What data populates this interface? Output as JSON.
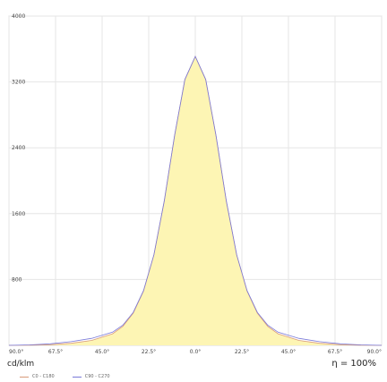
{
  "chart_data": {
    "type": "line",
    "title": "",
    "unit_label": "cd/klm",
    "efficiency_label": "η = 100%",
    "y_ticks": [
      "800",
      "1600",
      "2400",
      "3200",
      "4000"
    ],
    "ylim": [
      0,
      4000
    ],
    "x_ticks": [
      "90.0°",
      "67.5°",
      "45.0°",
      "22.5°",
      "0.0°",
      "22.5°",
      "45.0°",
      "67.5°",
      "90.0°"
    ],
    "xlim": [
      -90,
      90
    ],
    "grid": true,
    "legend_position": "bottom-left",
    "series": [
      {
        "name": "C0 - C180",
        "color": "#d89a7a",
        "fill": "#fdf5b4",
        "points": [
          [
            -90,
            0
          ],
          [
            -80,
            2
          ],
          [
            -70,
            8
          ],
          [
            -60,
            25
          ],
          [
            -50,
            60
          ],
          [
            -40,
            140
          ],
          [
            -35,
            230
          ],
          [
            -30,
            390
          ],
          [
            -25,
            660
          ],
          [
            -20,
            1100
          ],
          [
            -15,
            1750
          ],
          [
            -10,
            2550
          ],
          [
            -5,
            3230
          ],
          [
            0,
            3510
          ],
          [
            5,
            3230
          ],
          [
            10,
            2550
          ],
          [
            15,
            1750
          ],
          [
            20,
            1100
          ],
          [
            25,
            660
          ],
          [
            30,
            390
          ],
          [
            35,
            230
          ],
          [
            40,
            140
          ],
          [
            50,
            60
          ],
          [
            60,
            25
          ],
          [
            70,
            8
          ],
          [
            80,
            2
          ],
          [
            90,
            0
          ]
        ]
      },
      {
        "name": "C90 - C270",
        "color": "#7a7ad8",
        "points": [
          [
            -90,
            0
          ],
          [
            -80,
            5
          ],
          [
            -70,
            18
          ],
          [
            -60,
            45
          ],
          [
            -50,
            85
          ],
          [
            -40,
            160
          ],
          [
            -35,
            245
          ],
          [
            -30,
            400
          ],
          [
            -25,
            665
          ],
          [
            -20,
            1100
          ],
          [
            -15,
            1750
          ],
          [
            -10,
            2550
          ],
          [
            -5,
            3230
          ],
          [
            0,
            3510
          ],
          [
            5,
            3230
          ],
          [
            10,
            2550
          ],
          [
            15,
            1750
          ],
          [
            20,
            1100
          ],
          [
            25,
            665
          ],
          [
            30,
            400
          ],
          [
            35,
            245
          ],
          [
            40,
            160
          ],
          [
            50,
            85
          ],
          [
            60,
            45
          ],
          [
            70,
            18
          ],
          [
            80,
            5
          ],
          [
            90,
            0
          ]
        ]
      }
    ]
  }
}
